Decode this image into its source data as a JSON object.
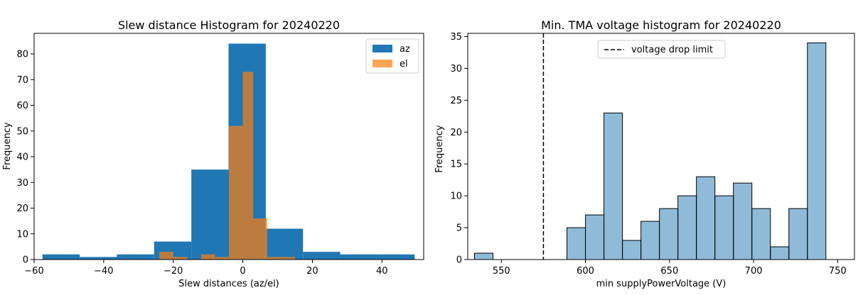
{
  "chart_data": [
    {
      "type": "bar",
      "title": "Slew distance Histogram for 20240220",
      "xlabel": "Slew distances (az/el)",
      "ylabel": "Frequency",
      "xlim": [
        -60,
        52
      ],
      "ylim": [
        0,
        88
      ],
      "xticks": [
        -60,
        -40,
        -20,
        0,
        20,
        40
      ],
      "xtick_labels": [
        "−60",
        "−40",
        "−20",
        "0",
        "20",
        "40"
      ],
      "yticks": [
        0,
        10,
        20,
        30,
        40,
        50,
        60,
        70,
        80
      ],
      "legend": [
        "az",
        "el"
      ],
      "legend_position": "top-right",
      "series": [
        {
          "name": "az",
          "color": "#1f77b4",
          "opacity": 1.0,
          "bins": [
            {
              "x0": -57.6,
              "x1": -46.9,
              "count": 2
            },
            {
              "x0": -46.9,
              "x1": -36.2,
              "count": 1
            },
            {
              "x0": -36.2,
              "x1": -25.5,
              "count": 2
            },
            {
              "x0": -25.5,
              "x1": -14.8,
              "count": 7
            },
            {
              "x0": -14.8,
              "x1": -4.1,
              "count": 35
            },
            {
              "x0": -4.1,
              "x1": 6.6,
              "count": 84
            },
            {
              "x0": 6.6,
              "x1": 17.3,
              "count": 12
            },
            {
              "x0": 17.3,
              "x1": 28.0,
              "count": 3
            },
            {
              "x0": 28.0,
              "x1": 38.7,
              "count": 2
            },
            {
              "x0": 38.7,
              "x1": 49.4,
              "count": 2
            }
          ]
        },
        {
          "name": "el",
          "color": "#ff7f0e",
          "opacity": 0.7,
          "bins": [
            {
              "x0": -24.0,
              "x1": -20.0,
              "count": 3
            },
            {
              "x0": -20.0,
              "x1": -16.0,
              "count": 1
            },
            {
              "x0": -16.0,
              "x1": -12.0,
              "count": 0
            },
            {
              "x0": -12.0,
              "x1": -8.0,
              "count": 2
            },
            {
              "x0": -8.0,
              "x1": -4.0,
              "count": 1
            },
            {
              "x0": -4.0,
              "x1": 0.0,
              "count": 52
            },
            {
              "x0": 0.0,
              "x1": 3.0,
              "count": 73
            },
            {
              "x0": 3.0,
              "x1": 7.0,
              "count": 16
            },
            {
              "x0": 7.0,
              "x1": 11.0,
              "count": 1
            },
            {
              "x0": 11.0,
              "x1": 15.0,
              "count": 1
            }
          ]
        }
      ]
    },
    {
      "type": "bar",
      "title": "Min. TMA voltage histogram for 20240220",
      "xlabel": "min supplyPowerVoltage (V)",
      "ylabel": "Frequency",
      "xlim": [
        530,
        760
      ],
      "ylim": [
        0,
        35.5
      ],
      "xticks": [
        550,
        600,
        650,
        700,
        750
      ],
      "yticks": [
        0,
        5,
        10,
        15,
        20,
        25,
        30,
        35
      ],
      "legend": [
        "voltage drop limit"
      ],
      "legend_position": "upper center",
      "reference_line": {
        "label": "voltage drop limit",
        "x": 575,
        "style": "dashed",
        "color": "#000000"
      },
      "series": [
        {
          "name": "",
          "color": "#1f77b4",
          "opacity": 0.5,
          "bin_edges": [
            534,
            545,
            556,
            567,
            578,
            589,
            600,
            611,
            622,
            633,
            644,
            655,
            666,
            677,
            688,
            699,
            710,
            721,
            732,
            743,
            754
          ],
          "counts": [
            1,
            0,
            0,
            0,
            0,
            5,
            7,
            23,
            3,
            6,
            8,
            10,
            13,
            10,
            12,
            8,
            2,
            8,
            34,
            0
          ]
        }
      ]
    }
  ]
}
